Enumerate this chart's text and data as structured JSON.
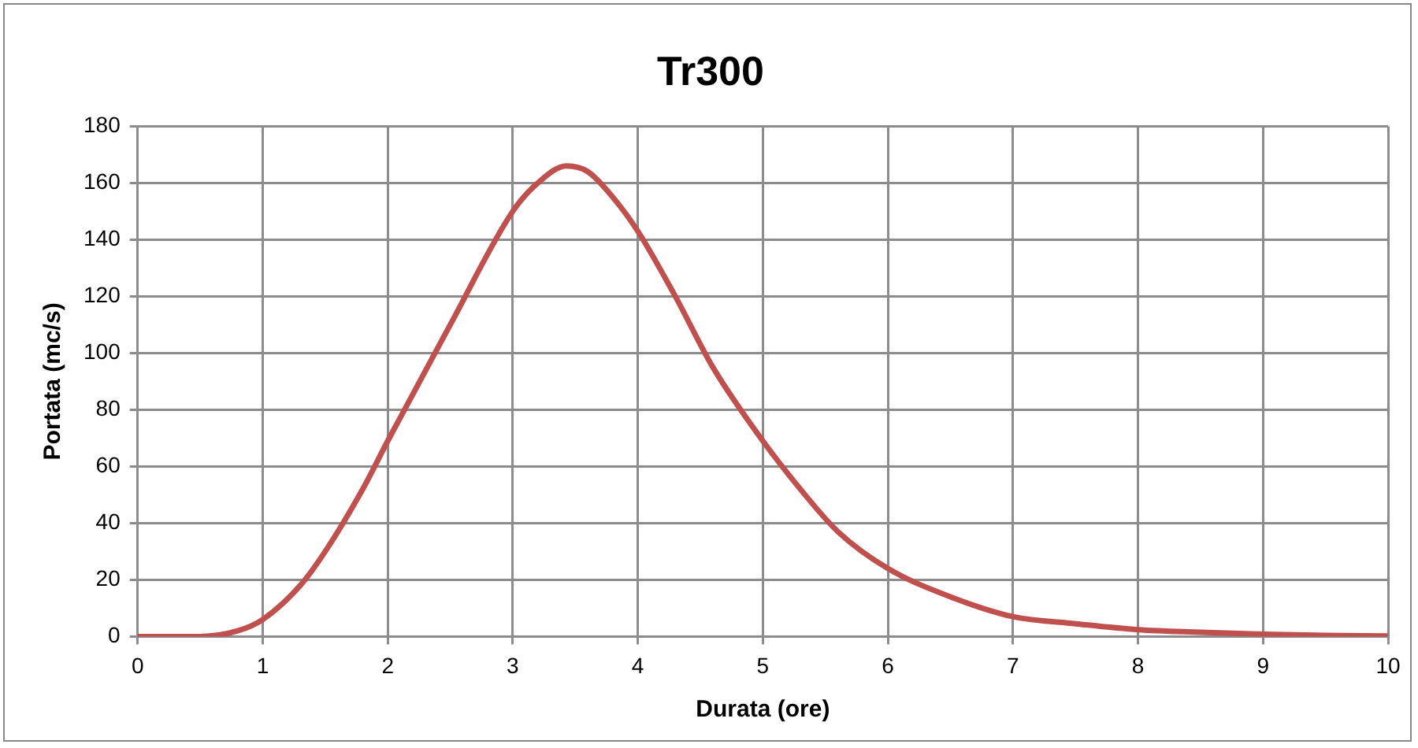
{
  "chart_data": {
    "type": "line",
    "title": "Tr300",
    "xlabel": "Durata (ore)",
    "ylabel": "Portata (mc/s)",
    "x": [
      0,
      0.5,
      0.8,
      1,
      1.3,
      1.5,
      1.8,
      2,
      2.5,
      3,
      3.2,
      3.43,
      3.6,
      3.8,
      4,
      4.3,
      4.6,
      5,
      5.3,
      5.6,
      6,
      6.5,
      7,
      7.5,
      8,
      8.5,
      9,
      9.5,
      10
    ],
    "series": [
      {
        "color": "#c0504d",
        "values": [
          0,
          0,
          2,
          6,
          18,
          30,
          52,
          69,
          110,
          150,
          160,
          166,
          164,
          155,
          143,
          120,
          95,
          69,
          52,
          37,
          24,
          14,
          7,
          4.5,
          2.4,
          1.5,
          0.8,
          0.4,
          0.2
        ]
      }
    ],
    "xlim": [
      0,
      10
    ],
    "xticks": [
      0,
      1,
      2,
      3,
      4,
      5,
      6,
      7,
      8,
      9,
      10
    ],
    "ylim": [
      0,
      180
    ],
    "yticks": [
      0,
      20,
      40,
      60,
      80,
      100,
      120,
      140,
      160,
      180
    ],
    "grid": true,
    "legend": false,
    "marker": "none",
    "line_style": "solid"
  }
}
